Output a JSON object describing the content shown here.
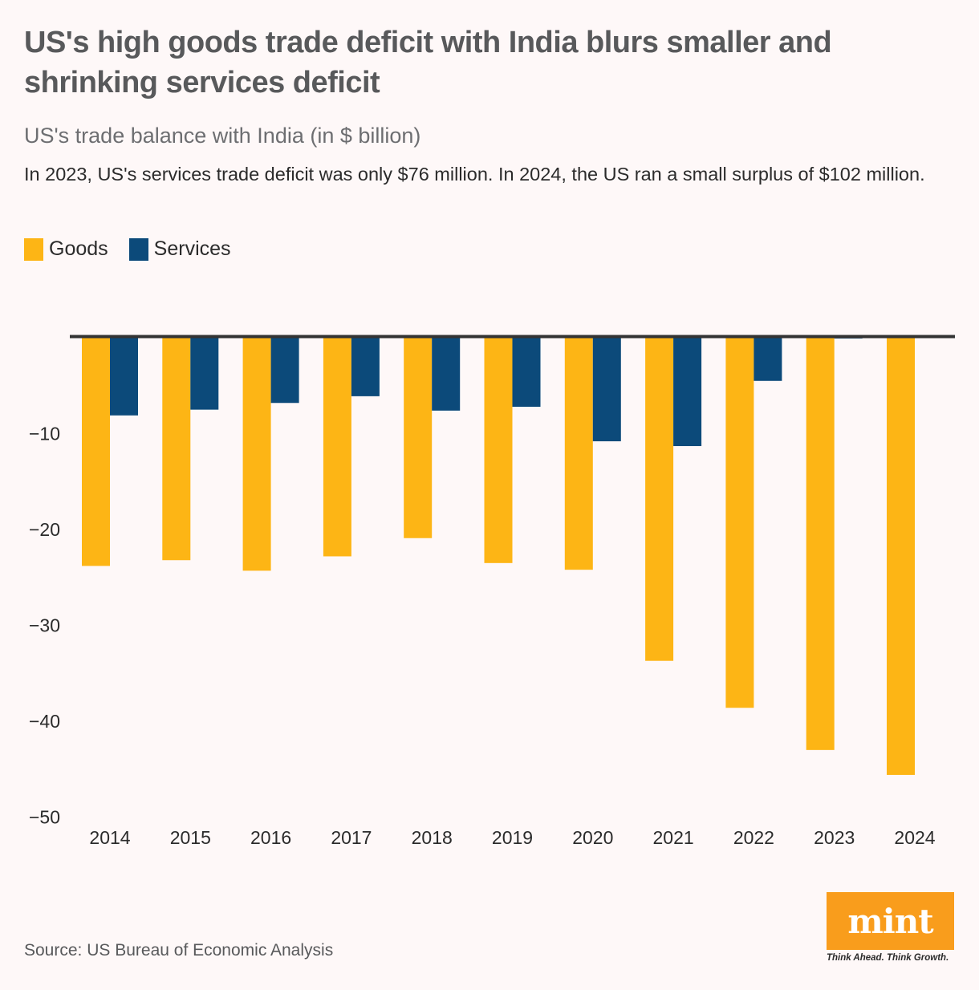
{
  "header": {
    "title": "US's high goods trade deficit with India blurs smaller and shrinking services deficit",
    "subtitle": "US's trade balance with India (in $ billion)",
    "note": "In 2023, US's services trade deficit was only $76 million. In 2024, the US ran a small surplus of $102 million."
  },
  "legend": [
    {
      "label": "Goods",
      "color": "#fdb515"
    },
    {
      "label": "Services",
      "color": "#0c4a7a"
    }
  ],
  "chart_data": {
    "type": "bar",
    "title": "US's trade balance with India (in $ billion)",
    "xlabel": "",
    "ylabel": "",
    "categories": [
      "2014",
      "2015",
      "2016",
      "2017",
      "2018",
      "2019",
      "2020",
      "2021",
      "2022",
      "2023",
      "2024"
    ],
    "series": [
      {
        "name": "Goods",
        "color": "#fdb515",
        "values": [
          -23.8,
          -23.2,
          -24.3,
          -22.8,
          -20.9,
          -23.5,
          -24.2,
          -33.7,
          -38.6,
          -43.0,
          -45.6
        ]
      },
      {
        "name": "Services",
        "color": "#0c4a7a",
        "values": [
          -8.1,
          -7.5,
          -6.8,
          -6.1,
          -7.6,
          -7.2,
          -10.8,
          -11.3,
          -4.5,
          -0.076,
          0.102
        ]
      }
    ],
    "ylim": [
      -50,
      0
    ],
    "yticks": [
      -10,
      -20,
      -30,
      -40,
      -50
    ],
    "ytick_labels": [
      "−10",
      "−20",
      "−30",
      "−40",
      "−50"
    ],
    "grid": false,
    "legend_position": "top-left"
  },
  "footer": {
    "source": "Source: US Bureau of Economic Analysis",
    "logo_text": "mint",
    "logo_tagline": "Think Ahead. Think Growth."
  }
}
